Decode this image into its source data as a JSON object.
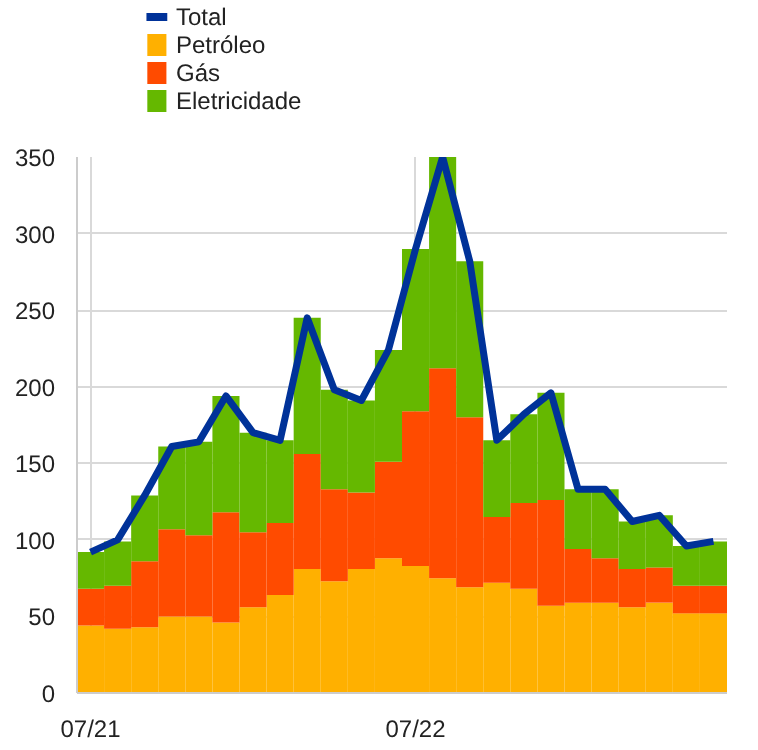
{
  "chart_data": {
    "type": "bar",
    "stacked": true,
    "categories": [
      "07/21",
      null,
      null,
      null,
      null,
      null,
      null,
      null,
      null,
      null,
      null,
      null,
      "07/22",
      null,
      null,
      null,
      null,
      null,
      null,
      null,
      null,
      null,
      null,
      null
    ],
    "series": [
      {
        "name": "Petróleo",
        "color": "#ffb000",
        "values": [
          44,
          42,
          43,
          50,
          50,
          46,
          56,
          64,
          81,
          73,
          81,
          88,
          83,
          75,
          69,
          72,
          68,
          57,
          59,
          59,
          56,
          59,
          52,
          52
        ]
      },
      {
        "name": "Gás",
        "color": "#ff4b00",
        "values": [
          24,
          28,
          43,
          57,
          53,
          72,
          49,
          47,
          75,
          60,
          50,
          63,
          101,
          137,
          111,
          43,
          56,
          69,
          35,
          29,
          25,
          23,
          18,
          18
        ]
      },
      {
        "name": "Eletricidade",
        "color": "#65b800",
        "values": [
          24,
          29,
          43,
          54,
          61,
          76,
          65,
          54,
          89,
          65,
          60,
          73,
          106,
          138,
          102,
          50,
          58,
          70,
          39,
          45,
          31,
          34,
          26,
          29
        ]
      },
      {
        "name": "Total",
        "type": "line",
        "color": "#003299",
        "values": [
          92,
          100,
          129,
          161,
          164,
          194,
          170,
          165,
          245,
          198,
          191,
          224,
          290,
          350,
          282,
          165,
          182,
          196,
          133,
          133,
          112,
          116,
          96,
          99
        ]
      }
    ],
    "ylim": [
      0,
      350
    ],
    "yticks": [
      0,
      50,
      100,
      150,
      200,
      250,
      300,
      350
    ],
    "grid": true,
    "legend": "top left",
    "marker": "none",
    "line_style": "solid"
  }
}
